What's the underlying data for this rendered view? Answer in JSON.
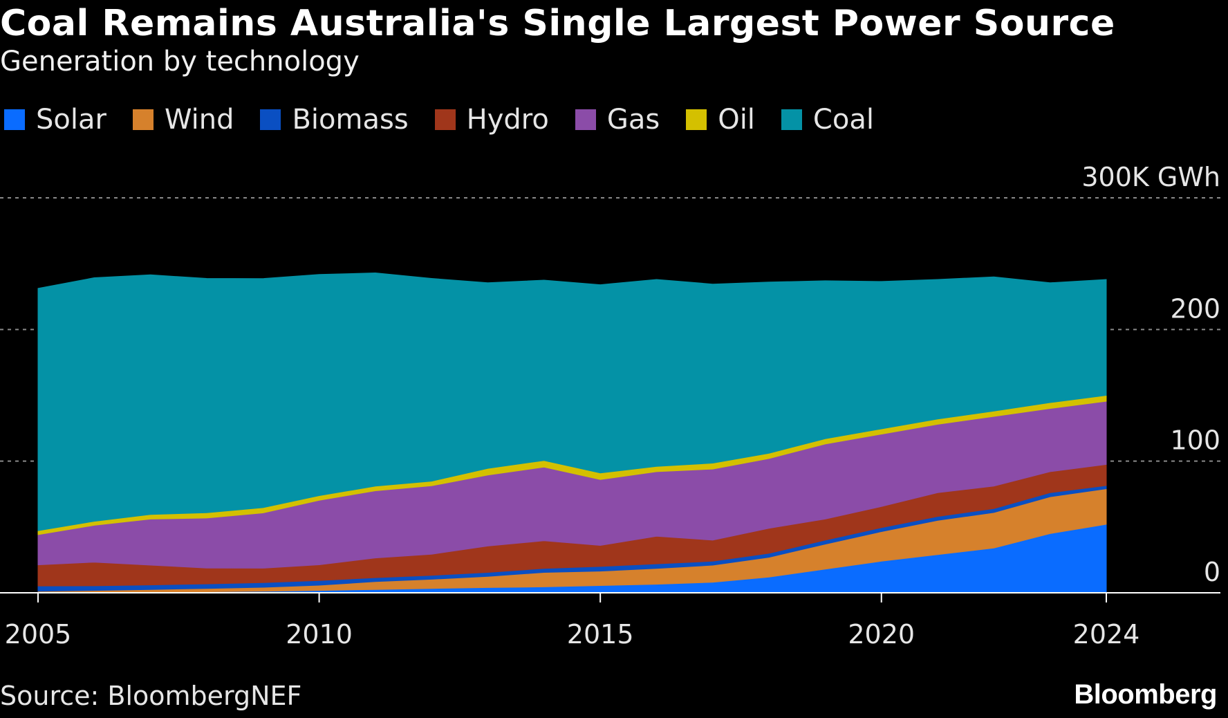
{
  "chart_data": {
    "type": "area",
    "stacked": true,
    "title": "Coal Remains Australia's Single Largest Power Source",
    "subtitle": "Generation by technology",
    "y_unit_label": "300K GWh",
    "ylim": [
      0,
      300
    ],
    "y_ticks": [
      {
        "value": 0,
        "label": "0"
      },
      {
        "value": 100,
        "label": "100"
      },
      {
        "value": 200,
        "label": "200"
      },
      {
        "value": 300,
        "label": "300K GWh"
      }
    ],
    "x_ticks": [
      {
        "value": 2005,
        "label": "2005"
      },
      {
        "value": 2010,
        "label": "2010"
      },
      {
        "value": 2015,
        "label": "2015"
      },
      {
        "value": 2020,
        "label": "2020"
      },
      {
        "value": 2024,
        "label": "2024"
      }
    ],
    "x": [
      2005,
      2006,
      2007,
      2008,
      2009,
      2010,
      2011,
      2012,
      2013,
      2014,
      2015,
      2016,
      2017,
      2018,
      2019,
      2020,
      2021,
      2022,
      2023,
      2024
    ],
    "series": [
      {
        "name": "Solar",
        "color": "#0a6cff",
        "values": [
          0.2,
          0.3,
          0.5,
          0.8,
          1.2,
          1.8,
          2.5,
          3.3,
          4.0,
          4.5,
          5.5,
          6.5,
          8.0,
          12.0,
          18.0,
          24.0,
          29.0,
          34.0,
          45.0,
          52.0
        ]
      },
      {
        "name": "Wind",
        "color": "#d6812c",
        "values": [
          1.0,
          1.5,
          2.0,
          2.5,
          3.0,
          4.0,
          6.0,
          7.0,
          8.5,
          11.0,
          11.0,
          12.0,
          13.0,
          15.0,
          19.0,
          22.5,
          26.0,
          27.0,
          28.0,
          27.0
        ]
      },
      {
        "name": "Biomass",
        "color": "#0a4fc2",
        "values": [
          4.0,
          3.5,
          3.5,
          3.5,
          3.5,
          3.5,
          3.0,
          3.0,
          3.0,
          3.0,
          3.5,
          3.5,
          3.0,
          3.0,
          3.0,
          3.0,
          3.0,
          3.0,
          3.0,
          2.5
        ]
      },
      {
        "name": "Hydro",
        "color": "#a0361b",
        "values": [
          16.0,
          18.0,
          15.0,
          12.0,
          11.0,
          12.0,
          15.0,
          16.0,
          20.0,
          21.0,
          16.0,
          21.0,
          16.0,
          19.0,
          16.0,
          16.0,
          18.0,
          17.0,
          16.0,
          16.0
        ]
      },
      {
        "name": "Gas",
        "color": "#8b4ca8",
        "values": [
          23.0,
          28.0,
          35.0,
          38.0,
          42.0,
          49.0,
          51.0,
          52.0,
          54.0,
          56.0,
          50.0,
          49.0,
          54.0,
          53.0,
          57.0,
          55.0,
          52.0,
          53.0,
          48.0,
          48.0
        ]
      },
      {
        "name": "Oil",
        "color": "#d4c000",
        "values": [
          3.0,
          3.0,
          3.5,
          4.0,
          4.0,
          3.5,
          3.5,
          3.5,
          5.0,
          5.0,
          5.0,
          4.0,
          4.5,
          4.0,
          4.0,
          4.0,
          4.0,
          4.0,
          4.5,
          4.5
        ]
      },
      {
        "name": "Coal",
        "color": "#0492a6",
        "values": [
          184.0,
          185.0,
          182.0,
          178.0,
          174.0,
          168.0,
          162.0,
          154.0,
          141.0,
          137.0,
          143.0,
          142.0,
          136.0,
          130.0,
          120.0,
          112.0,
          106.0,
          102.0,
          91.0,
          88.0
        ]
      }
    ]
  },
  "footer": {
    "source": "Source: BloombergNEF",
    "brand": "Bloomberg"
  },
  "colors": {
    "background": "#000000",
    "gridline": "#8a8a8a",
    "axis": "#ffffff",
    "text": "#e6e6e6"
  }
}
